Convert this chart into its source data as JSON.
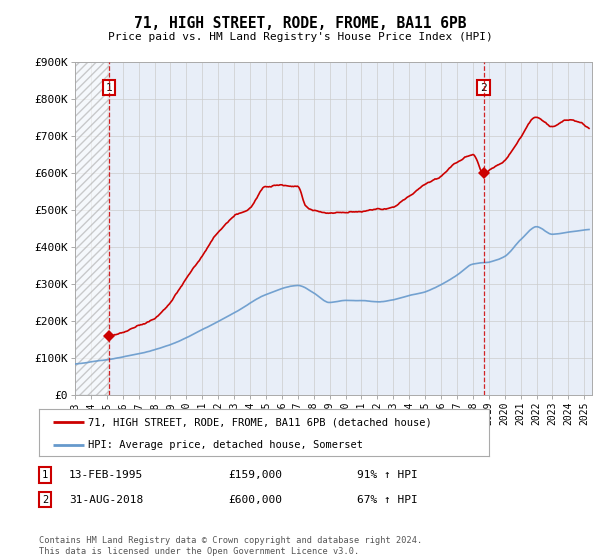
{
  "title": "71, HIGH STREET, RODE, FROME, BA11 6PB",
  "subtitle": "Price paid vs. HM Land Registry's House Price Index (HPI)",
  "ylim": [
    0,
    900000
  ],
  "yticks": [
    0,
    100000,
    200000,
    300000,
    400000,
    500000,
    600000,
    700000,
    800000,
    900000
  ],
  "ytick_labels": [
    "£0",
    "£100K",
    "£200K",
    "£300K",
    "£400K",
    "£500K",
    "£600K",
    "£700K",
    "£800K",
    "£900K"
  ],
  "xlim_start": 1993.0,
  "xlim_end": 2025.5,
  "transaction1_date": 1995.12,
  "transaction1_price": 159000,
  "transaction2_date": 2018.67,
  "transaction2_price": 600000,
  "red_line_color": "#cc0000",
  "blue_line_color": "#6699cc",
  "legend_label_red": "71, HIGH STREET, RODE, FROME, BA11 6PB (detached house)",
  "legend_label_blue": "HPI: Average price, detached house, Somerset",
  "note1_num": "1",
  "note1_date": "13-FEB-1995",
  "note1_price": "£159,000",
  "note1_hpi": "91% ↑ HPI",
  "note2_num": "2",
  "note2_date": "31-AUG-2018",
  "note2_price": "£600,000",
  "note2_hpi": "67% ↑ HPI",
  "footer": "Contains HM Land Registry data © Crown copyright and database right 2024.\nThis data is licensed under the Open Government Licence v3.0.",
  "plot_bg_color": "#e8eef8",
  "hatch_region_end": 1995.12,
  "hpi_knots_x": [
    1993,
    1995,
    1997,
    1999,
    2001,
    2003,
    2005,
    2007,
    2008,
    2009,
    2010,
    2011,
    2012,
    2013,
    2014,
    2015,
    2016,
    2017,
    2018,
    2019,
    2020,
    2021,
    2022,
    2023,
    2024,
    2025
  ],
  "hpi_knots_y": [
    83000,
    95000,
    110000,
    135000,
    175000,
    220000,
    270000,
    295000,
    275000,
    250000,
    255000,
    255000,
    252000,
    258000,
    270000,
    280000,
    300000,
    325000,
    355000,
    360000,
    375000,
    420000,
    455000,
    435000,
    440000,
    445000
  ],
  "red_knots_x": [
    1995.12,
    1996,
    1997,
    1998,
    1999,
    2000,
    2001,
    2002,
    2003,
    2004,
    2005,
    2006,
    2007,
    2007.5,
    2008,
    2009,
    2010,
    2011,
    2012,
    2013,
    2014,
    2015,
    2016,
    2017,
    2018,
    2018.67,
    2019,
    2020,
    2021,
    2022,
    2023,
    2024,
    2025
  ],
  "red_knots_y": [
    159000,
    165000,
    185000,
    205000,
    250000,
    310000,
    370000,
    430000,
    470000,
    490000,
    550000,
    560000,
    560000,
    510000,
    495000,
    490000,
    490000,
    495000,
    500000,
    505000,
    535000,
    565000,
    590000,
    630000,
    650000,
    600000,
    610000,
    640000,
    700000,
    755000,
    730000,
    745000,
    730000
  ]
}
